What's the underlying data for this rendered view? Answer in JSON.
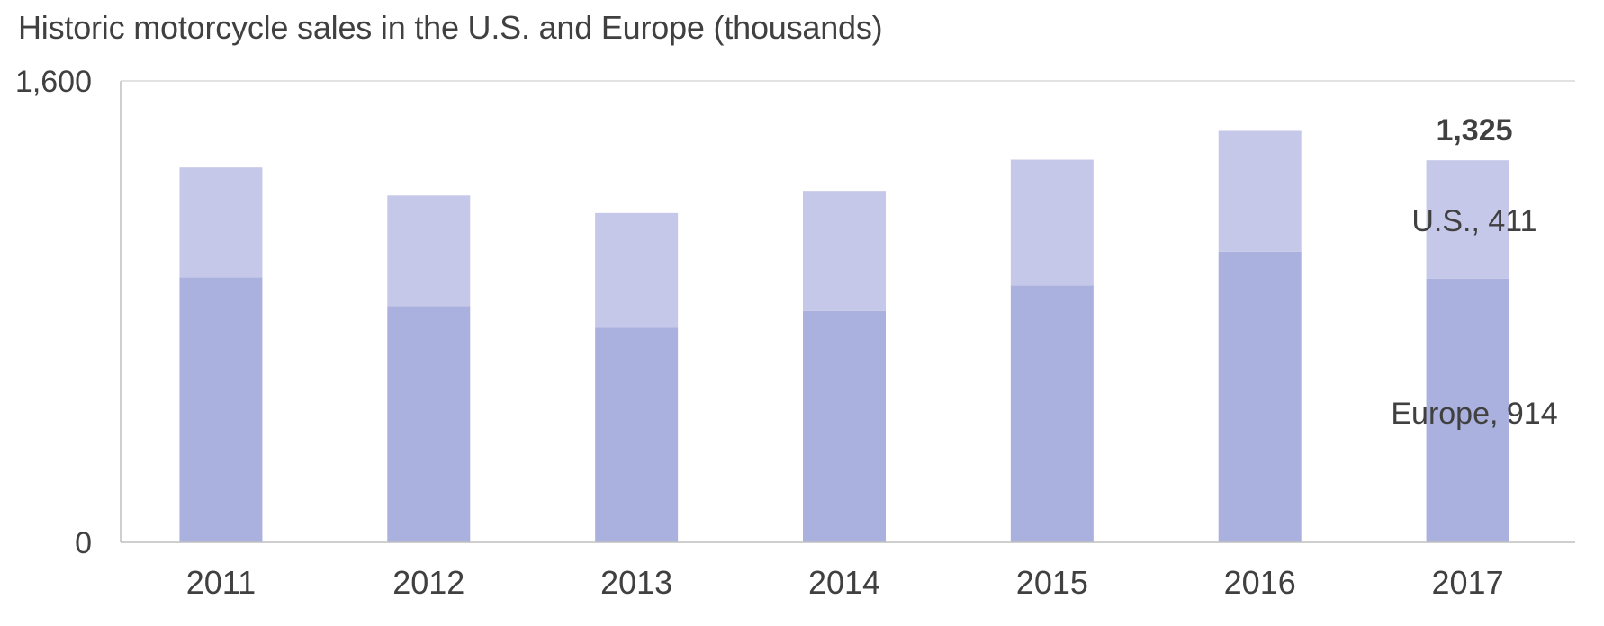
{
  "chart_data": {
    "type": "bar",
    "stacked": true,
    "title": "Historic motorcycle sales in the U.S. and Europe (thousands)",
    "xlabel": "",
    "ylabel": "",
    "ylim": [
      0,
      1600
    ],
    "yticks": [
      "0",
      "1,600"
    ],
    "categories": [
      "2011",
      "2012",
      "2013",
      "2014",
      "2015",
      "2016",
      "2017"
    ],
    "series": [
      {
        "name": "Europe",
        "color": "#aab1de",
        "values": [
          919,
          819,
          744,
          802,
          891,
          1008,
          914
        ]
      },
      {
        "name": "U.S.",
        "color": "#c5c8e8",
        "values": [
          381,
          384,
          398,
          417,
          436,
          419,
          411
        ]
      }
    ],
    "annotations": {
      "total_label": "1,325",
      "us_label": "U.S., 411",
      "europe_label": "Europe, 914"
    },
    "grid": false,
    "legend": "none"
  }
}
